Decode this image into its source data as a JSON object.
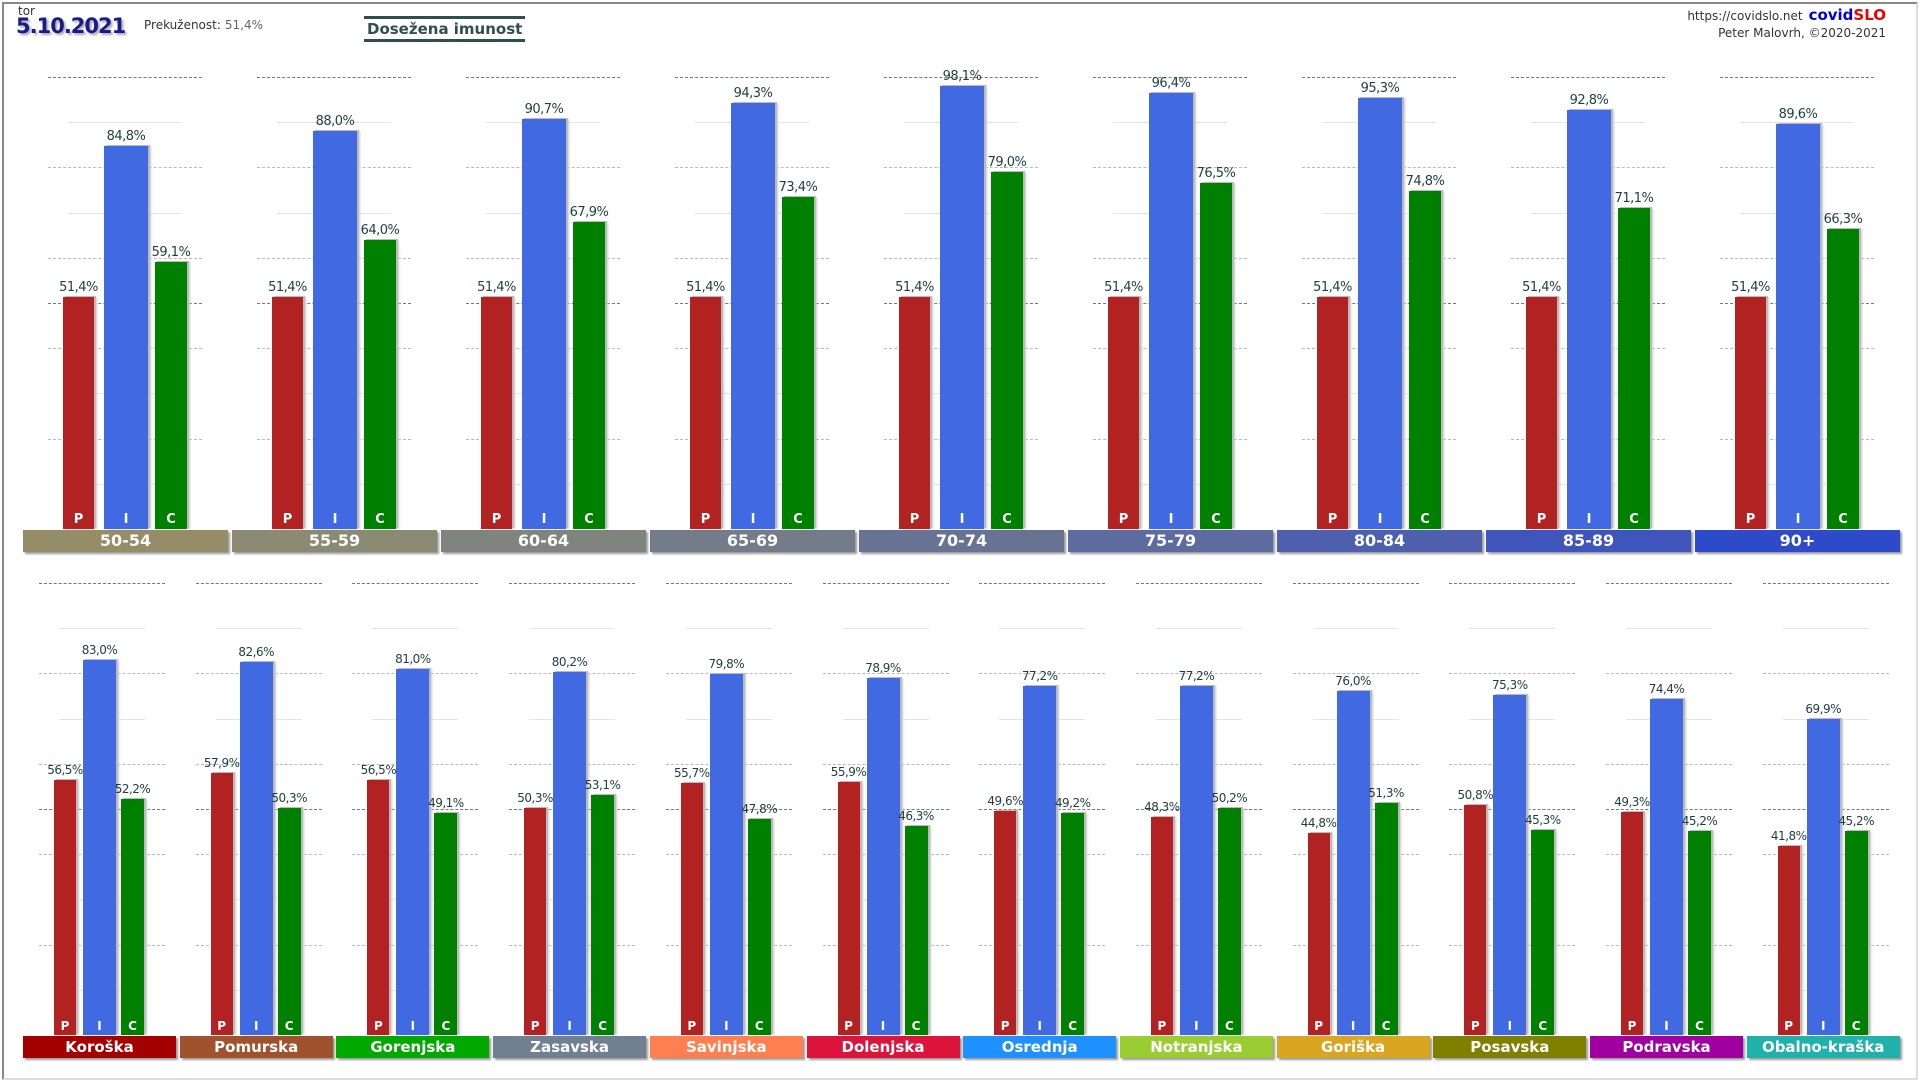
{
  "header": {
    "day": "tor",
    "date": "5.10.2021",
    "prek_label": "Prekuženost:",
    "prek_value": "51,4%",
    "title": "Dosežena imunost",
    "url": "https://covidslo.net",
    "brand_a": "covid",
    "brand_b": "SLO",
    "author": "Peter Malovrh, ©2020-2021"
  },
  "chart_data": [
    {
      "type": "bar",
      "title": "",
      "ylim": [
        0,
        100
      ],
      "grid": true,
      "bar_letters": [
        "P",
        "I",
        "C"
      ],
      "series_colors": [
        "#b22222",
        "#4169e1",
        "#008000"
      ],
      "categories": [
        "50-54",
        "55-59",
        "60-64",
        "65-69",
        "70-74",
        "75-79",
        "80-84",
        "85-89",
        "90+"
      ],
      "category_colors": [
        "#958d68",
        "#8b8a72",
        "#7f857e",
        "#747c8a",
        "#687394",
        "#5d6b9f",
        "#4d5fad",
        "#3f55bb",
        "#2d4ac8"
      ],
      "series": [
        {
          "values": [
            51.4,
            51.4,
            51.4,
            51.4,
            51.4,
            51.4,
            51.4,
            51.4,
            51.4
          ]
        },
        {
          "values": [
            84.8,
            88.0,
            90.7,
            94.3,
            98.1,
            96.4,
            95.3,
            92.8,
            89.6
          ]
        },
        {
          "values": [
            59.1,
            64.0,
            67.9,
            73.4,
            79.0,
            76.5,
            74.8,
            71.1,
            66.3
          ]
        }
      ]
    },
    {
      "type": "bar",
      "title": "",
      "ylim": [
        0,
        100
      ],
      "grid": true,
      "bar_letters": [
        "P",
        "I",
        "C"
      ],
      "series_colors": [
        "#b22222",
        "#4169e1",
        "#008000"
      ],
      "categories": [
        "Koroška",
        "Pomurska",
        "Gorenjska",
        "Zasavska",
        "Savinjska",
        "Dolenjska",
        "Osrednja",
        "Notranjska",
        "Goriška",
        "Posavska",
        "Podravska",
        "Obalno-kraška"
      ],
      "category_colors": [
        "#a50000",
        "#a0522d",
        "#00a800",
        "#708090",
        "#ff7f50",
        "#dc143c",
        "#1e90ff",
        "#9acd32",
        "#daa520",
        "#808000",
        "#a000a0",
        "#20b2aa"
      ],
      "series": [
        {
          "values": [
            56.5,
            57.9,
            56.5,
            50.3,
            55.7,
            55.9,
            49.6,
            48.3,
            44.8,
            50.8,
            49.3,
            41.8
          ]
        },
        {
          "values": [
            83.0,
            82.6,
            81.0,
            80.2,
            79.8,
            78.9,
            77.2,
            77.2,
            76.0,
            75.3,
            74.4,
            69.9
          ]
        },
        {
          "values": [
            52.2,
            50.3,
            49.1,
            53.1,
            47.8,
            46.3,
            49.2,
            50.2,
            51.3,
            45.3,
            45.2,
            45.2
          ]
        }
      ]
    }
  ]
}
